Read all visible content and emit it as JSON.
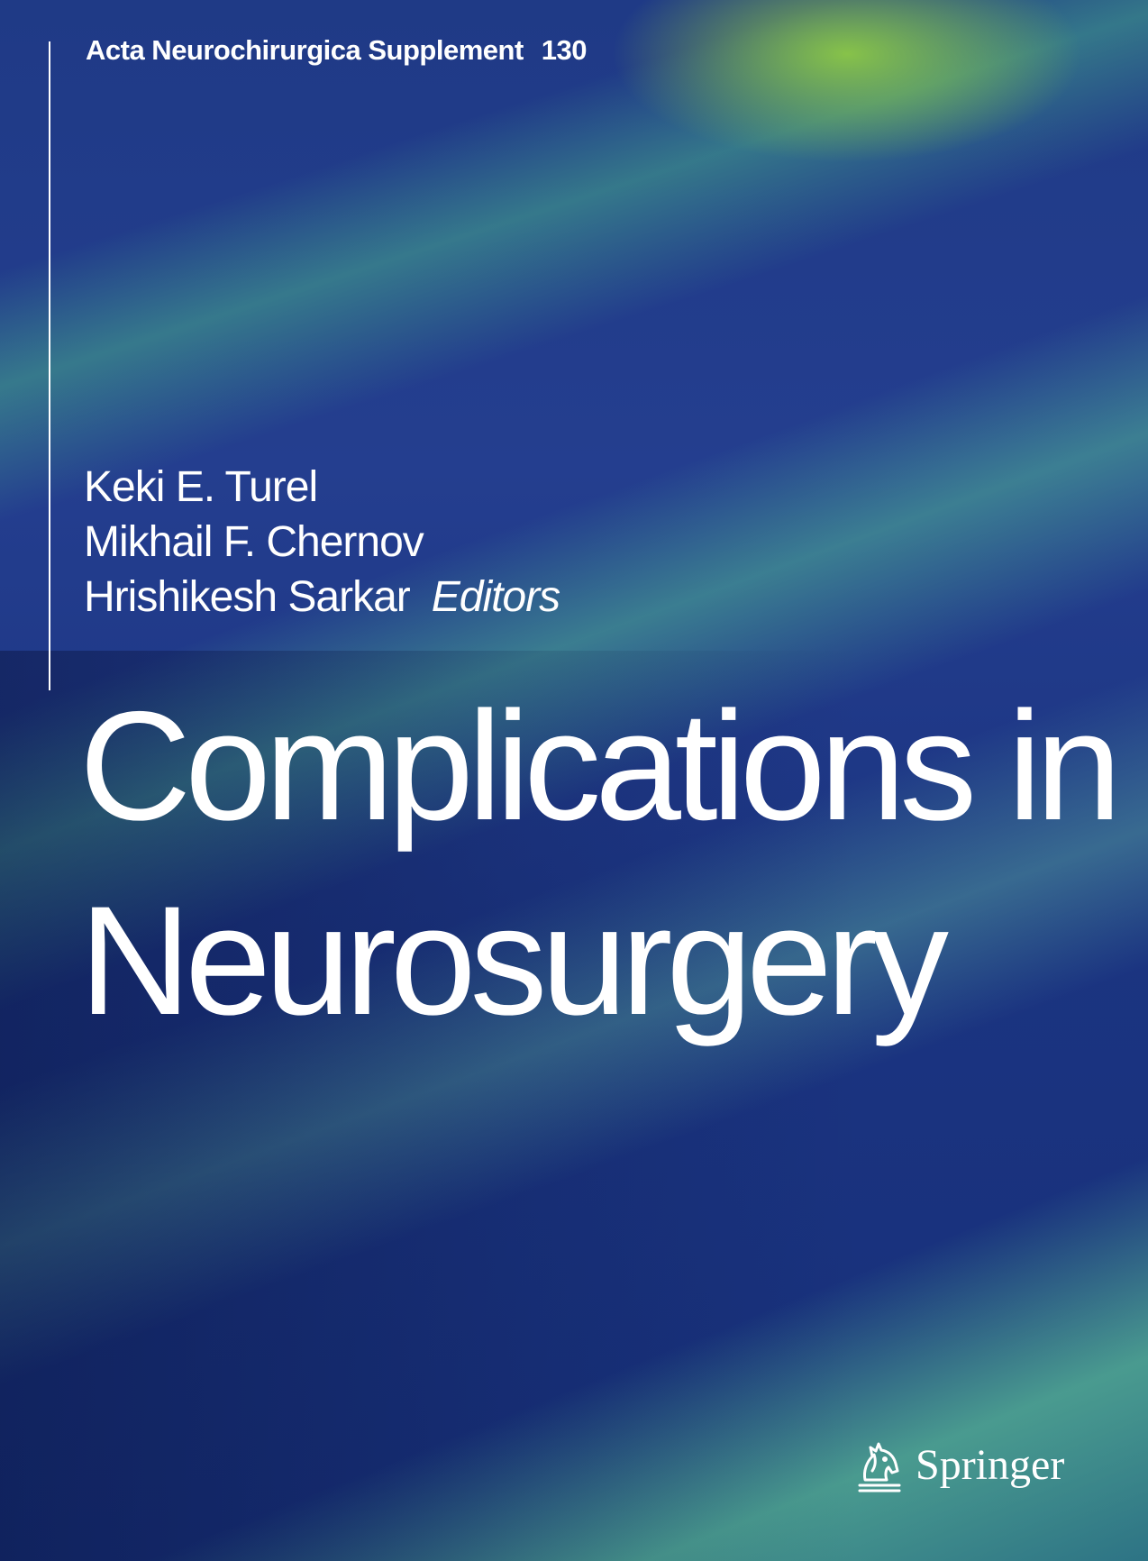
{
  "series": {
    "name": "Acta Neurochirurgica Supplement",
    "volume": "130"
  },
  "editors": {
    "names": [
      "Keki E. Turel",
      "Mikhail F. Chernov",
      "Hrishikesh Sarkar"
    ],
    "role": "Editors"
  },
  "title": {
    "line1": "Complications in",
    "line2": "Neurosurgery"
  },
  "publisher": {
    "name": "Springer",
    "logo_icon": "springer-horse-icon"
  },
  "colors": {
    "background": "#1f3a86",
    "accent_green": "#8cc846",
    "teal": "#50b496",
    "text": "#ffffff"
  }
}
